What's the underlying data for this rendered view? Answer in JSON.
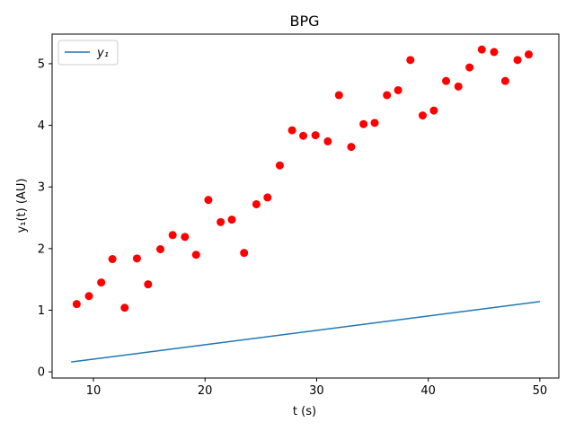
{
  "chart_data": {
    "type": "scatter",
    "title": "BPG",
    "xlabel": "t (s)",
    "ylabel": "y₁(t) (AU)",
    "xlim": [
      6.3,
      51.7
    ],
    "ylim": [
      -0.1,
      5.48
    ],
    "xticks": [
      10,
      20,
      30,
      40,
      50
    ],
    "yticks": [
      0,
      1,
      2,
      3,
      4,
      5
    ],
    "grid": false,
    "legend_position": "top-left",
    "colors": {
      "line": "#1f77b4",
      "points": "#ff0000"
    },
    "series": [
      {
        "name": "y₁",
        "kind": "line",
        "x": [
          8,
          50
        ],
        "y": [
          0.16,
          1.14
        ]
      },
      {
        "kind": "scatter",
        "x": [
          8.5,
          9.6,
          10.7,
          11.7,
          12.8,
          13.9,
          14.9,
          16.0,
          17.1,
          18.2,
          19.2,
          20.3,
          21.4,
          22.4,
          23.5,
          24.6,
          25.6,
          26.7,
          27.8,
          28.8,
          29.9,
          31.0,
          32.0,
          33.1,
          34.2,
          35.2,
          36.3,
          37.3,
          38.4,
          39.5,
          40.5,
          41.6,
          42.7,
          43.7,
          44.8,
          45.9,
          46.9,
          48.0,
          49.0
        ],
        "y": [
          1.1,
          1.23,
          1.45,
          1.83,
          1.04,
          1.84,
          1.42,
          1.99,
          2.22,
          2.19,
          1.9,
          2.79,
          2.43,
          2.47,
          1.93,
          2.72,
          2.83,
          3.35,
          3.92,
          3.83,
          3.84,
          3.74,
          4.49,
          3.65,
          4.02,
          4.04,
          4.49,
          4.57,
          5.06,
          4.16,
          4.24,
          4.72,
          4.63,
          4.94,
          5.23,
          5.19,
          4.72,
          5.06,
          5.15
        ]
      }
    ]
  }
}
